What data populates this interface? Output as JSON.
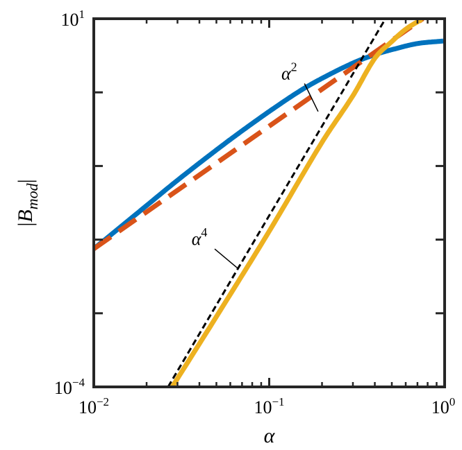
{
  "chart_data": {
    "type": "line",
    "title": "",
    "xlabel": "α",
    "ylabel_parts": {
      "bar_left": "|",
      "main": "B",
      "sub": "mod",
      "bar_right": "|"
    },
    "xscale": "log",
    "yscale": "log",
    "xlim": [
      0.01,
      1
    ],
    "ylim": [
      0.0001,
      10
    ],
    "grid": false,
    "legend": "none",
    "x_ticks": [
      {
        "value": 0.01,
        "base": "10",
        "exp": "−2"
      },
      {
        "value": 0.1,
        "base": "10",
        "exp": "−1"
      },
      {
        "value": 1,
        "base": "10",
        "exp": "0"
      }
    ],
    "y_ticks": [
      {
        "value": 0.0001,
        "base": "10",
        "exp": "−4"
      },
      {
        "value": 10,
        "base": "10",
        "exp": "1"
      }
    ],
    "y_minor_ticks": [
      0.001,
      0.01,
      0.1,
      1
    ],
    "series": [
      {
        "color": "#0072BD",
        "style": "solid",
        "x": [
          0.01,
          0.02,
          0.03,
          0.05,
          0.07,
          0.1,
          0.15,
          0.2,
          0.3,
          0.4,
          0.5,
          0.7,
          1.0
        ],
        "y": [
          0.0075,
          0.029,
          0.064,
          0.165,
          0.3,
          0.55,
          1.05,
          1.55,
          2.5,
          3.25,
          3.8,
          4.6,
          5.0
        ]
      },
      {
        "color": "#D95319",
        "style": "dashed",
        "x": [
          0.01,
          0.75
        ],
        "y": [
          0.0075,
          10
        ]
      },
      {
        "color": "#EDB120",
        "style": "solid",
        "x": [
          0.028,
          0.05,
          0.1,
          0.2,
          0.3,
          0.4,
          0.5,
          0.6,
          0.75
        ],
        "y": [
          0.0001,
          0.0009,
          0.013,
          0.21,
          0.9,
          2.9,
          4.9,
          7.2,
          10
        ]
      },
      {
        "color": "#000000",
        "style": "dotted",
        "x": [
          0.0265,
          0.46
        ],
        "y": [
          0.0001,
          10
        ]
      }
    ],
    "annotations": [
      {
        "base": "α",
        "exp": "2",
        "x": 0.13,
        "y": 1.5,
        "line_to": {
          "x": 0.19,
          "y": 0.55
        }
      },
      {
        "base": "α",
        "exp": "4",
        "x": 0.04,
        "y": 0.0085,
        "line_to": {
          "x": 0.066,
          "y": 0.0041
        }
      }
    ]
  }
}
